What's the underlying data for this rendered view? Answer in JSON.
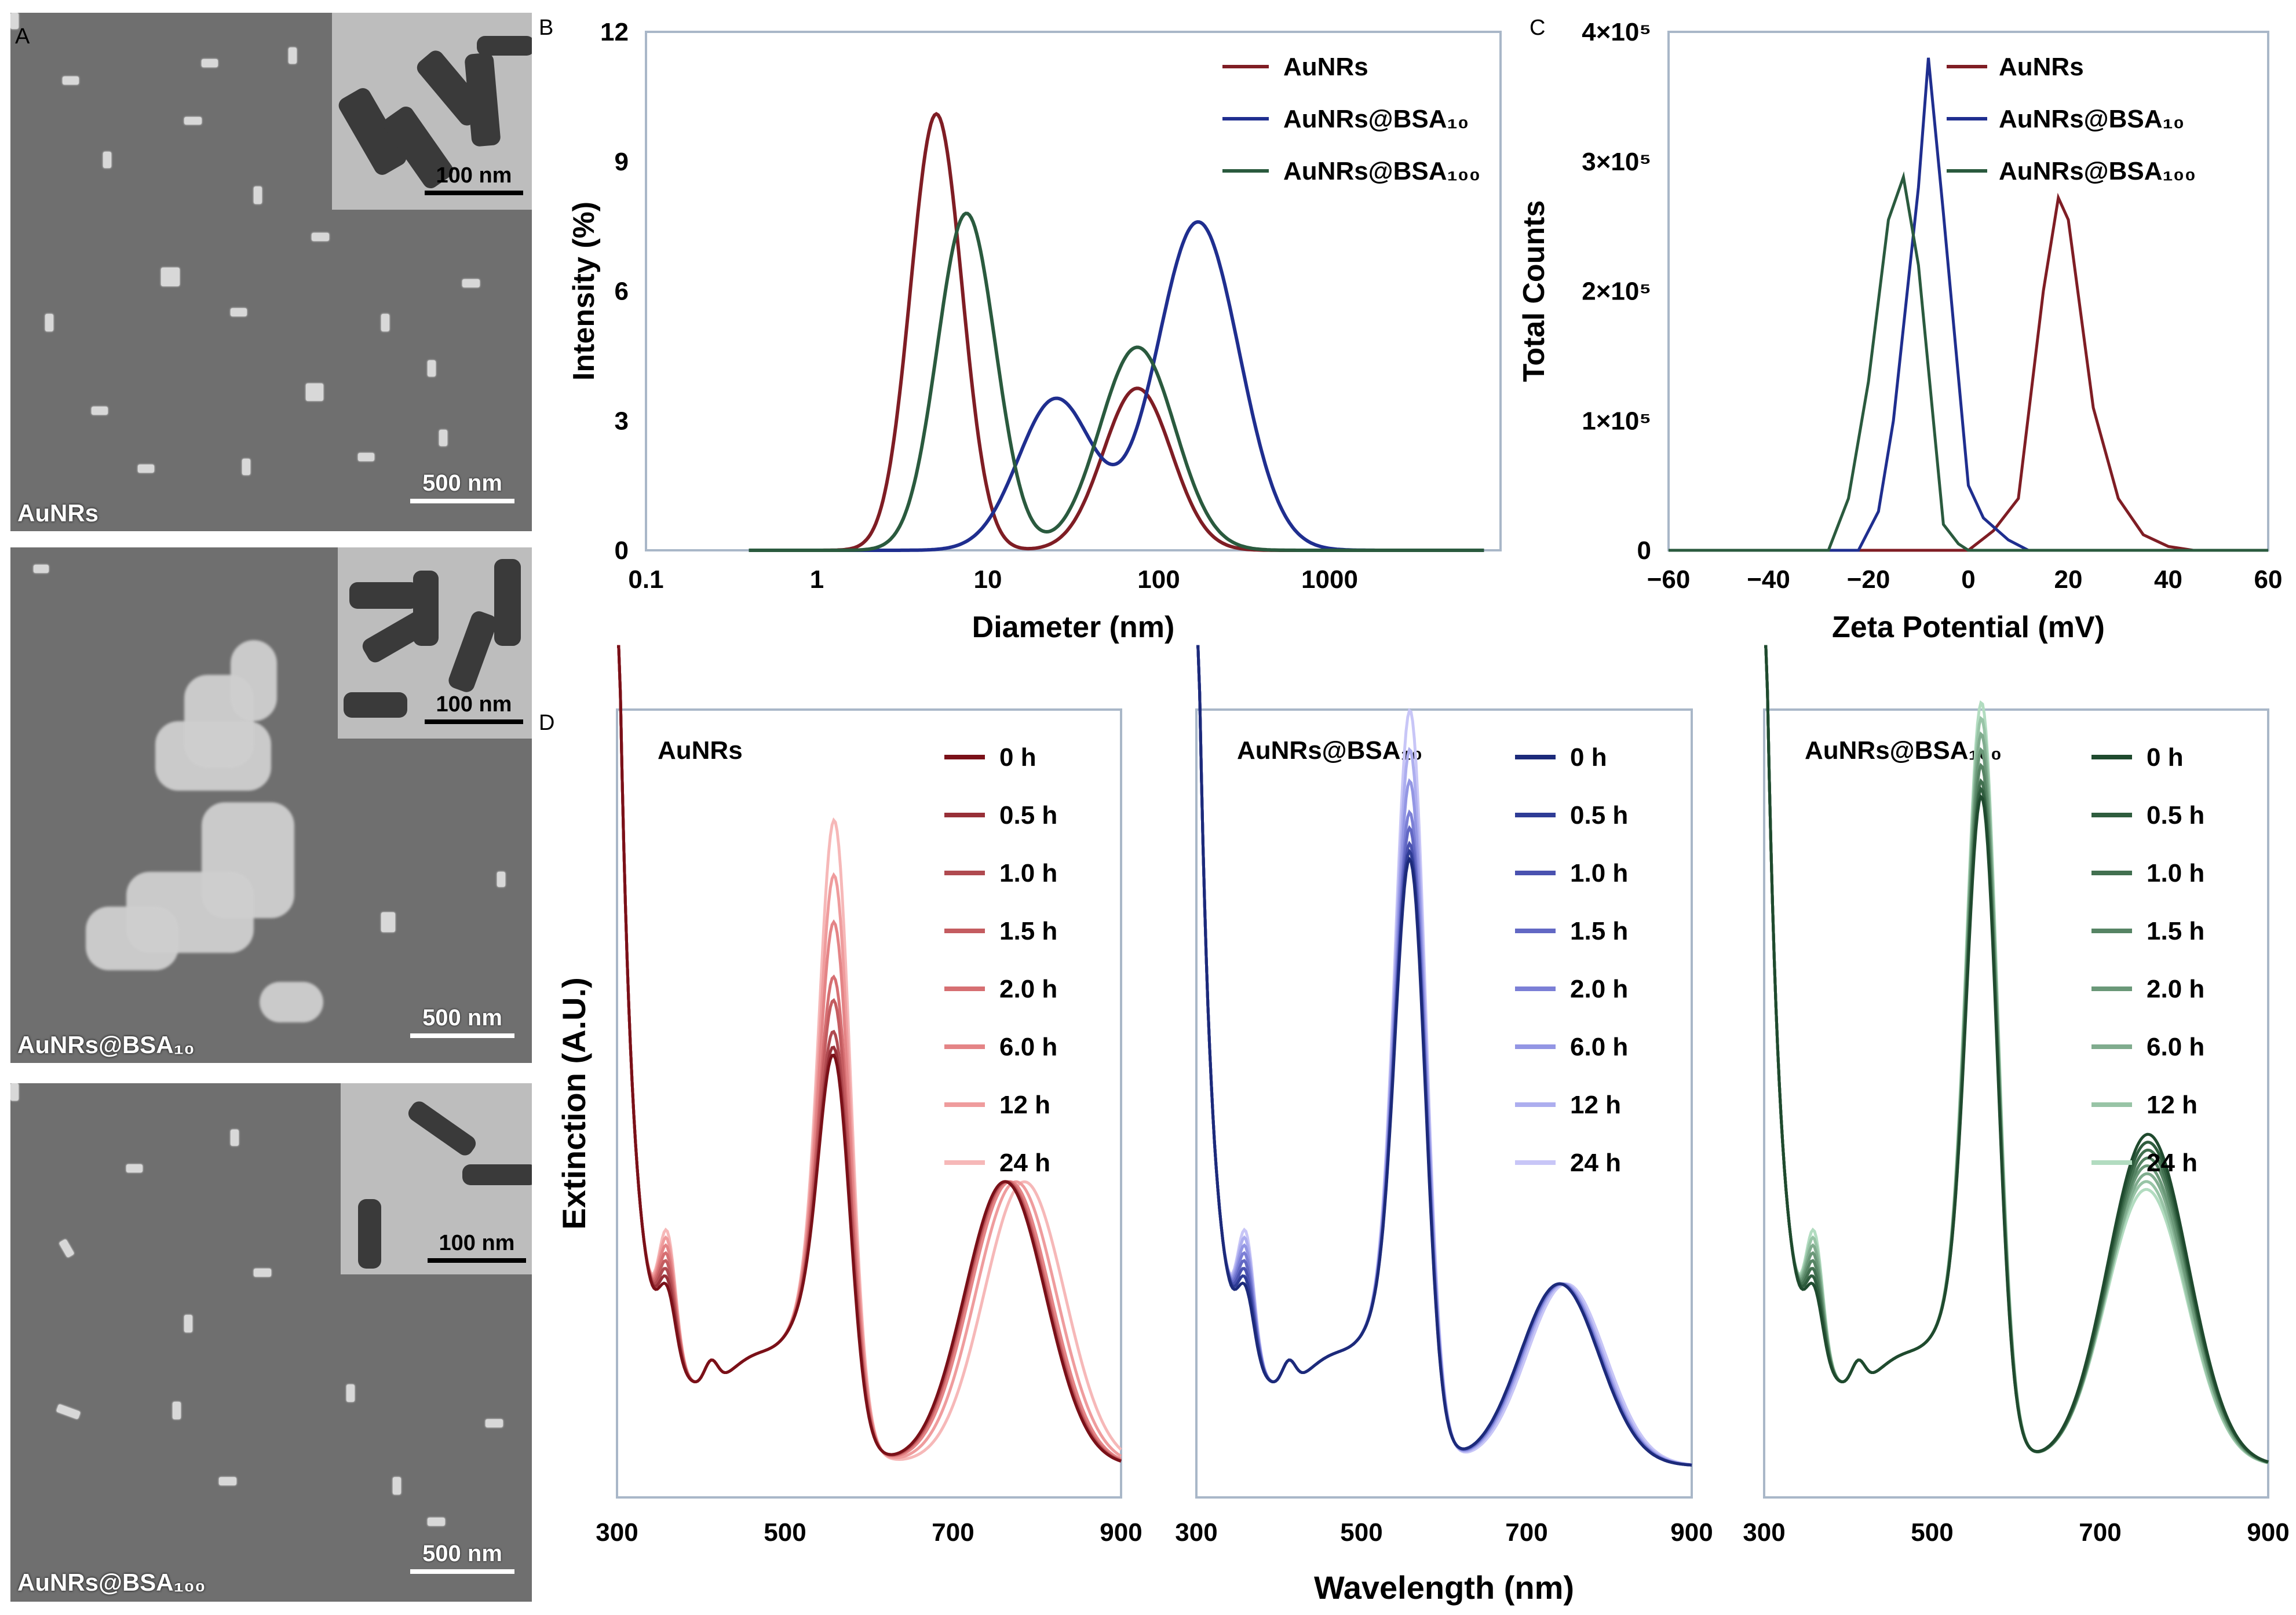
{
  "panel_letters": {
    "a": "A",
    "b": "B",
    "c": "C",
    "d": "D"
  },
  "micrographs": [
    {
      "label": "AuNRs",
      "scale_main": "500 nm",
      "scale_inset": "100 nm"
    },
    {
      "label": "AuNRs@BSA₁₀",
      "scale_main": "500 nm",
      "scale_inset": "100 nm"
    },
    {
      "label": "AuNRs@BSA₁₀₀",
      "scale_main": "500 nm",
      "scale_inset": "100 nm"
    }
  ],
  "colors": {
    "aunrs": "#7f1d24",
    "bsa10": "#1f2e8f",
    "bsa100": "#2a5a3e",
    "frame": "#a9b7c8"
  },
  "chart_data": [
    {
      "id": "B",
      "type": "line",
      "xscale": "log",
      "xlabel": "Diameter (nm)",
      "ylabel": "Intensity (%)",
      "xlim": [
        0.1,
        10000
      ],
      "ylim": [
        0,
        12
      ],
      "xticks": [
        {
          "v": 0.1,
          "t": "0.1"
        },
        {
          "v": 1,
          "t": "1"
        },
        {
          "v": 10,
          "t": "10"
        },
        {
          "v": 100,
          "t": "100"
        },
        {
          "v": 1000,
          "t": "1000"
        }
      ],
      "yticks": [
        {
          "v": 0,
          "t": "0"
        },
        {
          "v": 3,
          "t": "3"
        },
        {
          "v": 6,
          "t": "6"
        },
        {
          "v": 9,
          "t": "9"
        },
        {
          "v": 12,
          "t": "12"
        }
      ],
      "legend": [
        "AuNRs",
        "AuNRs@BSA₁₀",
        "AuNRs@BSA₁₀₀"
      ],
      "series": [
        {
          "name": "AuNRs",
          "color": "#7f1d24",
          "peaks": [
            {
              "center": 5,
              "height": 10.1,
              "width": 0.15
            },
            {
              "center": 75,
              "height": 3.75,
              "width": 0.2
            }
          ]
        },
        {
          "name": "AuNRs@BSA₁₀",
          "color": "#1f2e8f",
          "peaks": [
            {
              "center": 25,
              "height": 3.5,
              "width": 0.22
            },
            {
              "center": 170,
              "height": 7.6,
              "width": 0.24
            }
          ]
        },
        {
          "name": "AuNRs@BSA₁₀₀",
          "color": "#2a5a3e",
          "peaks": [
            {
              "center": 7.5,
              "height": 7.8,
              "width": 0.17
            },
            {
              "center": 75,
              "height": 4.7,
              "width": 0.22
            }
          ]
        }
      ]
    },
    {
      "id": "C",
      "type": "line",
      "xlabel": "Zeta Potential (mV)",
      "ylabel": "Total Counts",
      "xlim": [
        -60,
        60
      ],
      "ylim": [
        0,
        400000
      ],
      "xticks": [
        {
          "v": -60,
          "t": "−60"
        },
        {
          "v": -40,
          "t": "−40"
        },
        {
          "v": -20,
          "t": "−20"
        },
        {
          "v": 0,
          "t": "0"
        },
        {
          "v": 20,
          "t": "20"
        },
        {
          "v": 40,
          "t": "40"
        },
        {
          "v": 60,
          "t": "60"
        }
      ],
      "yticks": [
        {
          "v": 0,
          "t": "0"
        },
        {
          "v": 100000,
          "t": "1×10⁵"
        },
        {
          "v": 200000,
          "t": "2×10⁵"
        },
        {
          "v": 300000,
          "t": "3×10⁵"
        },
        {
          "v": 400000,
          "t": "4×10⁵"
        }
      ],
      "legend": [
        "AuNRs",
        "AuNRs@BSA₁₀",
        "AuNRs@BSA₁₀₀"
      ],
      "series": [
        {
          "name": "AuNRs",
          "color": "#7f1d24",
          "x": [
            -60,
            0,
            5,
            10,
            15,
            18,
            20,
            25,
            30,
            35,
            40,
            45,
            60
          ],
          "y": [
            0,
            0,
            15000,
            40000,
            200000,
            272000,
            255000,
            110000,
            40000,
            12000,
            3000,
            0,
            0
          ]
        },
        {
          "name": "AuNRs@BSA₁₀",
          "color": "#1f2e8f",
          "x": [
            -60,
            -22,
            -18,
            -15,
            -10,
            -8,
            -5,
            0,
            3,
            8,
            12,
            60
          ],
          "y": [
            0,
            0,
            30000,
            100000,
            280000,
            380000,
            260000,
            50000,
            25000,
            8000,
            0,
            0
          ]
        },
        {
          "name": "AuNRs@BSA₁₀₀",
          "color": "#2a5a3e",
          "x": [
            -60,
            -28,
            -24,
            -20,
            -16,
            -13,
            -10,
            -5,
            -2,
            0,
            60
          ],
          "y": [
            0,
            0,
            40000,
            130000,
            255000,
            288000,
            220000,
            20000,
            5000,
            0,
            0
          ]
        }
      ]
    },
    {
      "id": "D1",
      "type": "line",
      "title": "AuNRs",
      "xlabel": "",
      "ylabel": "Extinction (A.U.)",
      "xlim": [
        300,
        900
      ],
      "ylim": [
        0,
        1
      ],
      "xticks": [
        {
          "v": 300,
          "t": "300"
        },
        {
          "v": 500,
          "t": "500"
        },
        {
          "v": 700,
          "t": "700"
        },
        {
          "v": 900,
          "t": "900"
        }
      ],
      "legend": [
        "0 h",
        "0.5 h",
        "1.0 h",
        "1.5 h",
        "2.0 h",
        "6.0 h",
        "12 h",
        "24 h"
      ],
      "series_colors": [
        "#7a1018",
        "#983038",
        "#b04a50",
        "#c45c60",
        "#d66f72",
        "#e48486",
        "#ef9c9d",
        "#f6b8b8"
      ],
      "transverse_peak_heights": [
        0.57,
        0.58,
        0.6,
        0.64,
        0.67,
        0.74,
        0.8,
        0.87
      ],
      "longitudinal_peak": {
        "centers": [
          762,
          762,
          763,
          764,
          765,
          768,
          775,
          785
        ],
        "height": 0.36
      }
    },
    {
      "id": "D2",
      "type": "line",
      "title": "AuNRs@BSA₁₀",
      "xlabel": "Wavelength (nm)",
      "xlim": [
        300,
        900
      ],
      "ylim": [
        0,
        1
      ],
      "xticks": [
        {
          "v": 300,
          "t": "300"
        },
        {
          "v": 500,
          "t": "500"
        },
        {
          "v": 700,
          "t": "700"
        },
        {
          "v": 900,
          "t": "900"
        }
      ],
      "legend": [
        "0 h",
        "0.5 h",
        "1.0 h",
        "1.5 h",
        "2.0 h",
        "6.0 h",
        "12 h",
        "24 h"
      ],
      "series_colors": [
        "#1c2a7a",
        "#2f3c96",
        "#4a52b0",
        "#6268c4",
        "#7b7fd6",
        "#9396e4",
        "#adaeef",
        "#c8c6f7"
      ],
      "transverse_peak_heights": [
        0.82,
        0.83,
        0.84,
        0.86,
        0.88,
        0.92,
        0.96,
        1.01
      ],
      "longitudinal_peak": {
        "centers": [
          740,
          740,
          740,
          741,
          742,
          743,
          745,
          748
        ],
        "height": 0.23
      }
    },
    {
      "id": "D3",
      "type": "line",
      "title": "AuNRs@BSA₁₀₀",
      "xlabel": "",
      "xlim": [
        300,
        900
      ],
      "ylim": [
        0,
        1
      ],
      "xticks": [
        {
          "v": 300,
          "t": "300"
        },
        {
          "v": 500,
          "t": "500"
        },
        {
          "v": 700,
          "t": "700"
        },
        {
          "v": 900,
          "t": "900"
        }
      ],
      "legend": [
        "0 h",
        "0.5 h",
        "1.0 h",
        "1.5 h",
        "2.0 h",
        "6.0 h",
        "12 h",
        "24 h"
      ],
      "series_colors": [
        "#1f4a2e",
        "#2f5d3e",
        "#427050",
        "#568464",
        "#6a9878",
        "#80ac8e",
        "#98c4a6",
        "#b2dcc0"
      ],
      "transverse_peak_heights": [
        0.9,
        0.91,
        0.92,
        0.94,
        0.96,
        0.98,
        1.0,
        1.02
      ],
      "longitudinal_peak": {
        "centers": [
          757,
          757,
          757,
          757,
          756,
          756,
          755,
          755
        ],
        "height": 0.42,
        "heights": [
          0.42,
          0.41,
          0.4,
          0.39,
          0.38,
          0.37,
          0.36,
          0.35
        ]
      }
    }
  ]
}
